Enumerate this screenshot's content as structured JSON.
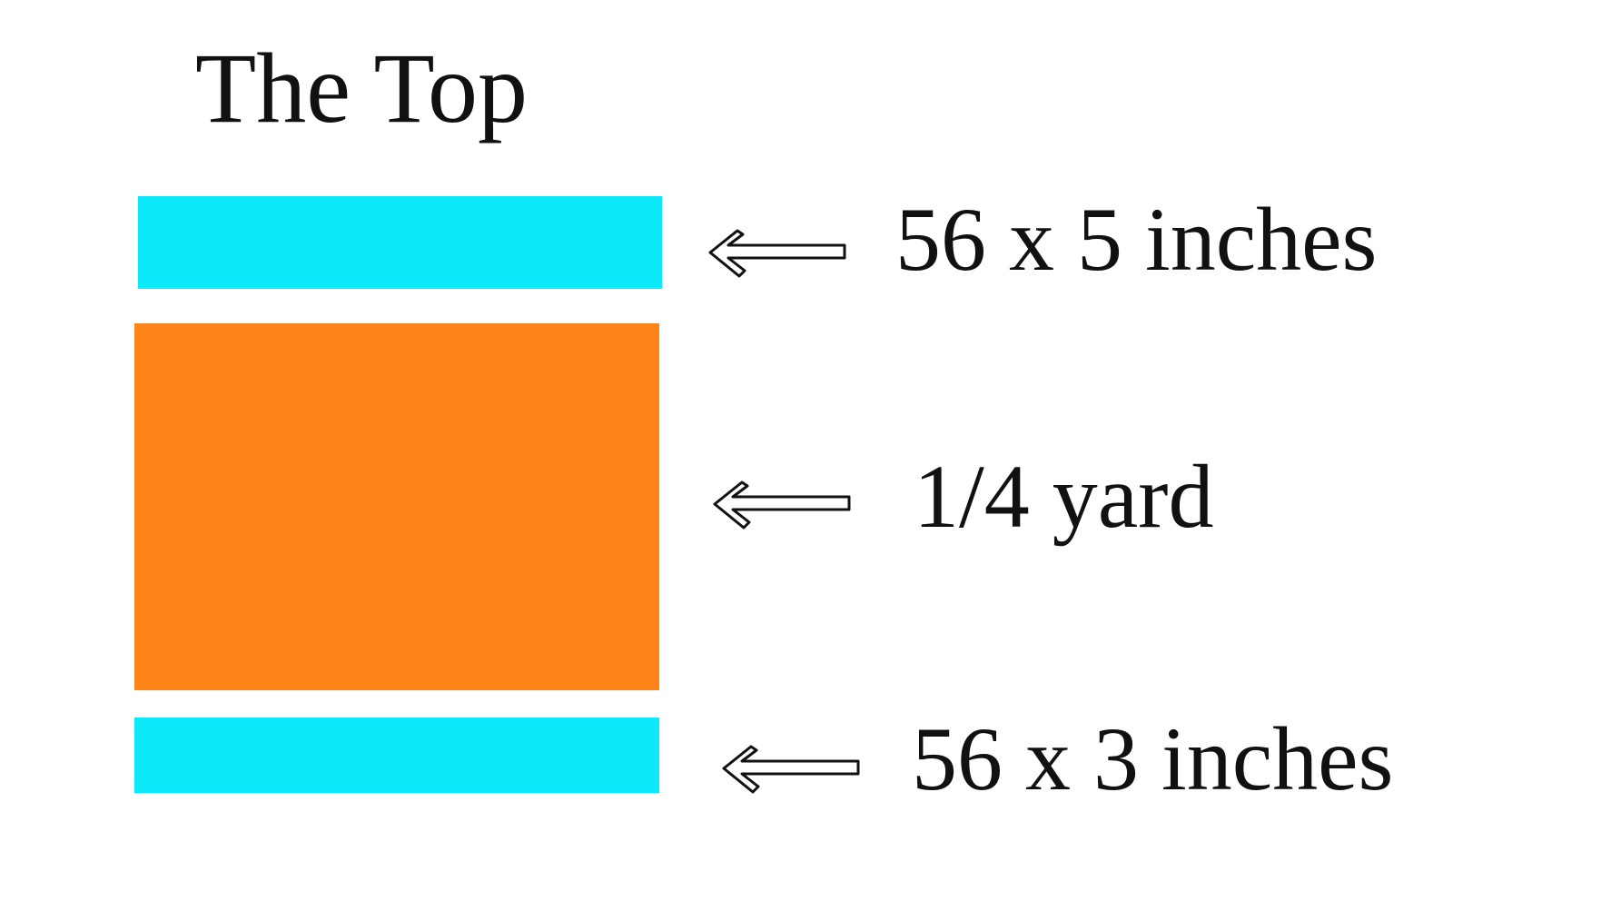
{
  "title": "The Top",
  "pieces": [
    {
      "label": "56 x 5 inches"
    },
    {
      "label": "1/4 yard"
    },
    {
      "label": "56 x 3 inches"
    }
  ]
}
